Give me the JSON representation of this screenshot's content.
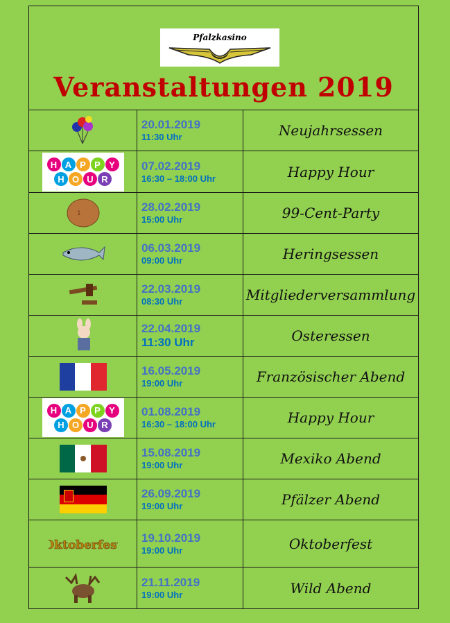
{
  "header": {
    "logo_text": "Pfalzkasino",
    "title": "Veranstaltungen 2019"
  },
  "happy_hour_logo": [
    "H",
    "A",
    "P",
    "P",
    "Y",
    "H",
    "O",
    "U",
    "R"
  ],
  "oktoberfest_logo": "Oktoberfest",
  "colors": {
    "background": "#92d050",
    "title": "#c00000",
    "date": "#4472c4",
    "time": "#0070c0"
  },
  "events": [
    {
      "icon": "balloons-icon",
      "date": "20.01.2019",
      "time": "11:30 Uhr",
      "name": "Neujahrsessen"
    },
    {
      "icon": "happy-hour-icon",
      "date": "07.02.2019",
      "time": "16:30 – 18:00 Uhr",
      "name": "Happy Hour"
    },
    {
      "icon": "cent-coin-icon",
      "date": "28.02.2019",
      "time": "15:00 Uhr",
      "name": "99-Cent-Party"
    },
    {
      "icon": "herring-icon",
      "date": "06.03.2019",
      "time": "09:00 Uhr",
      "name": "Heringsessen"
    },
    {
      "icon": "gavel-icon",
      "date": "22.03.2019",
      "time": "08:30 Uhr",
      "name": "Mitgliederversammlung"
    },
    {
      "icon": "easter-bunny-icon",
      "date": "22.04.2019",
      "time": "11:30 Uhr",
      "name": "Osteressen"
    },
    {
      "icon": "france-flag-icon",
      "date": "16.05.2019",
      "time": "19:00 Uhr",
      "name": "Französischer Abend"
    },
    {
      "icon": "happy-hour-icon",
      "date": "01.08.2019",
      "time": "16:30 – 18:00 Uhr",
      "name": "Happy Hour"
    },
    {
      "icon": "mexico-flag-icon",
      "date": "15.08.2019",
      "time": "19:00 Uhr",
      "name": "Mexiko Abend"
    },
    {
      "icon": "rhineland-palatinate-flag-icon",
      "date": "26.09.2019",
      "time": "19:00 Uhr",
      "name": "Pfälzer Abend"
    },
    {
      "icon": "oktoberfest-icon",
      "date": "19.10.2019",
      "time": "19:00 Uhr",
      "name": "Oktoberfest"
    },
    {
      "icon": "moose-icon",
      "date": "21.11.2019",
      "time": "19:00 Uhr",
      "name": "Wild Abend"
    }
  ]
}
